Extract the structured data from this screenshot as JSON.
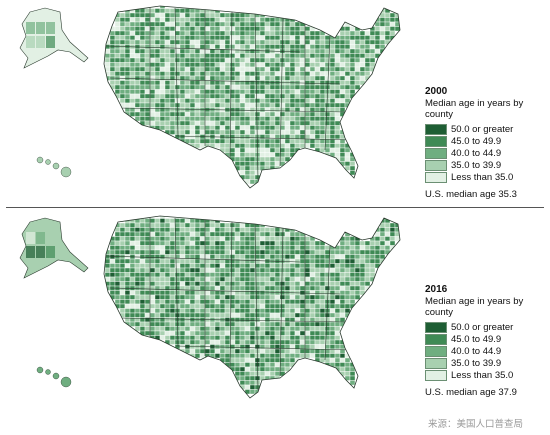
{
  "maps": [
    {
      "year": "2000",
      "title": "Median age in years by county",
      "us_median": "U.S. median age 35.3"
    },
    {
      "year": "2016",
      "title": "Median age in years by county",
      "us_median": "U.S. median age 37.9"
    }
  ],
  "legend_classes": [
    {
      "label": "50.0 or greater",
      "color": "#1e5e34"
    },
    {
      "label": "45.0 to 49.9",
      "color": "#3f8a55"
    },
    {
      "label": "40.0 to 44.9",
      "color": "#6fae80"
    },
    {
      "label": "35.0 to 39.9",
      "color": "#a8d0b0"
    },
    {
      "label": "Less than 35.0",
      "color": "#e2f0e4"
    }
  ],
  "colors": {
    "background": "#ffffff",
    "state_border": "#2a3a2e",
    "county_border": "#ffffff"
  },
  "source": "来源：美国人口普查局"
}
